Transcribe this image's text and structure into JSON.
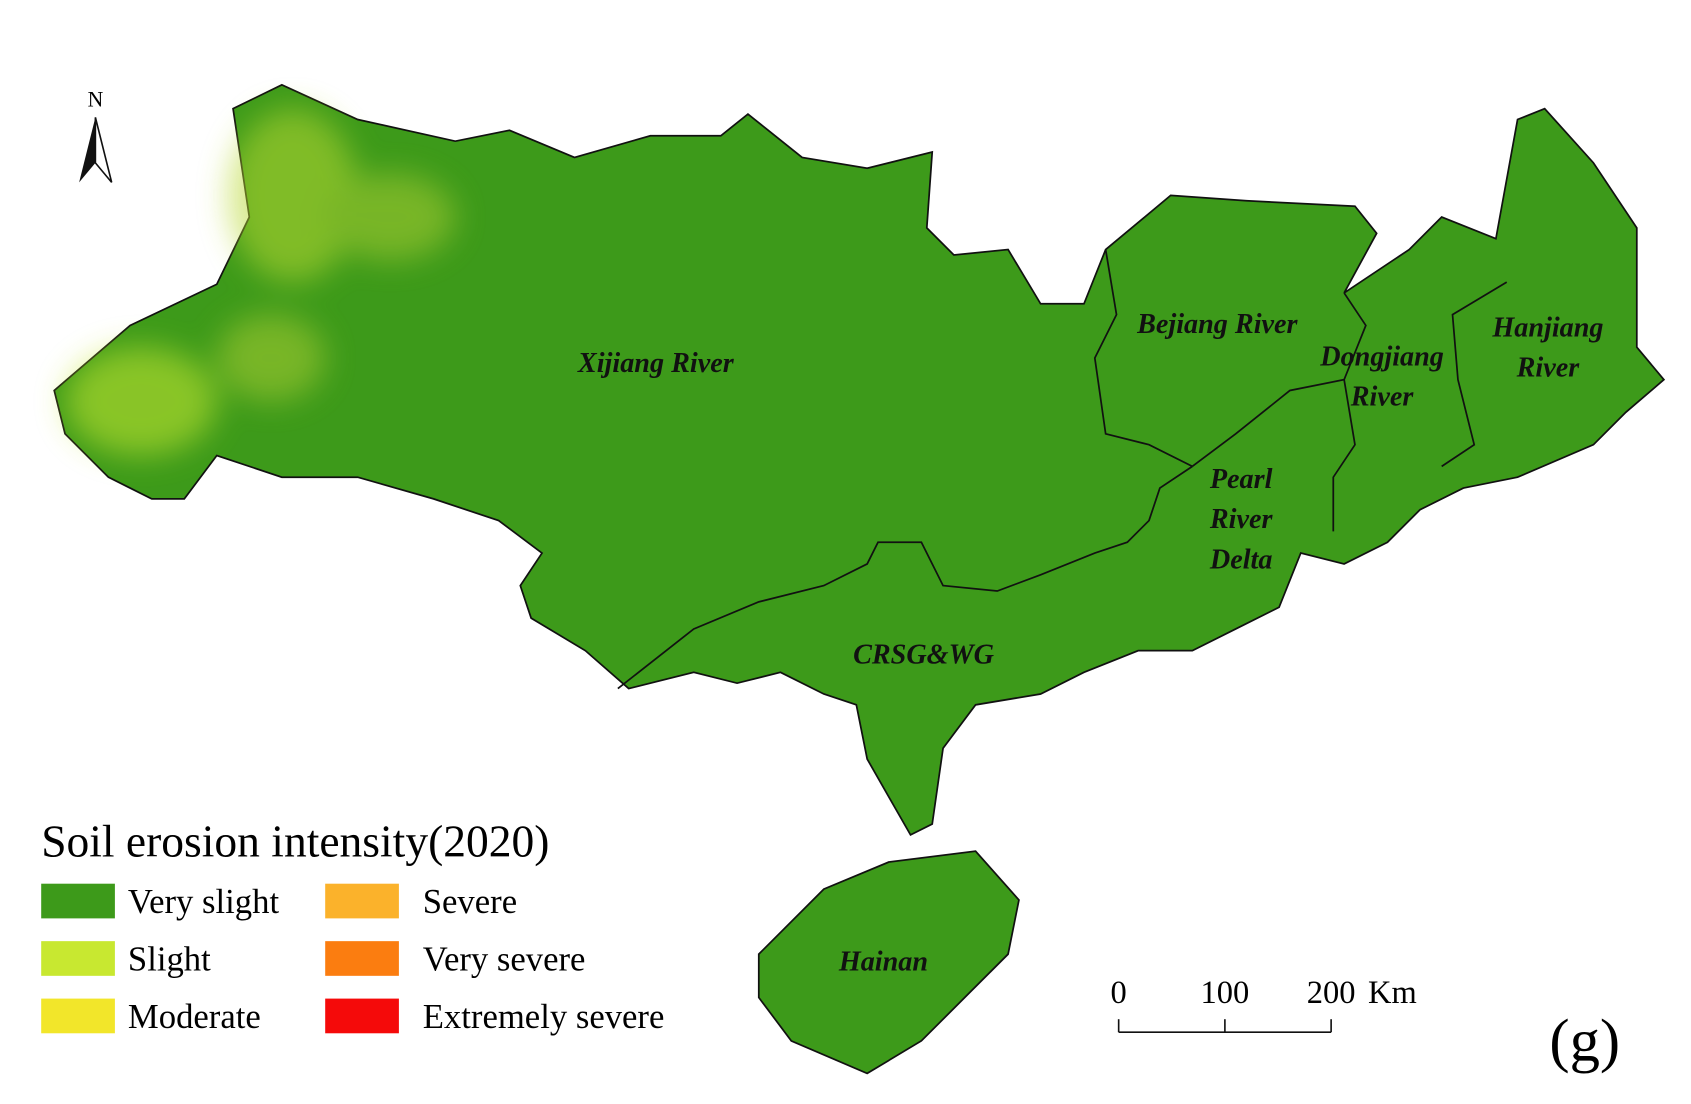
{
  "north_label": "N",
  "regions": [
    {
      "lines": [
        "Xijiang River"
      ]
    },
    {
      "lines": [
        "Bejiang River"
      ]
    },
    {
      "lines": [
        "Dongjiang",
        "River"
      ]
    },
    {
      "lines": [
        "Hanjiang",
        "River"
      ]
    },
    {
      "lines": [
        "Pearl",
        "River",
        "Delta"
      ]
    },
    {
      "lines": [
        "CRSG&WG"
      ]
    },
    {
      "lines": [
        "Hainan"
      ]
    }
  ],
  "legend": {
    "title": "Soil erosion intensity(2020)",
    "items": [
      {
        "label": "Very slight",
        "color": "#3d9a1a"
      },
      {
        "label": "Slight",
        "color": "#c8e830"
      },
      {
        "label": "Moderate",
        "color": "#f2e62a"
      },
      {
        "label": "Severe",
        "color": "#fbb22b"
      },
      {
        "label": "Very severe",
        "color": "#fb7d10"
      },
      {
        "label": "Extremely severe",
        "color": "#f50a0a"
      }
    ]
  },
  "scale_bar": {
    "ticks": [
      0,
      100,
      200
    ],
    "unit": "Km"
  },
  "panel_label": "(g)"
}
